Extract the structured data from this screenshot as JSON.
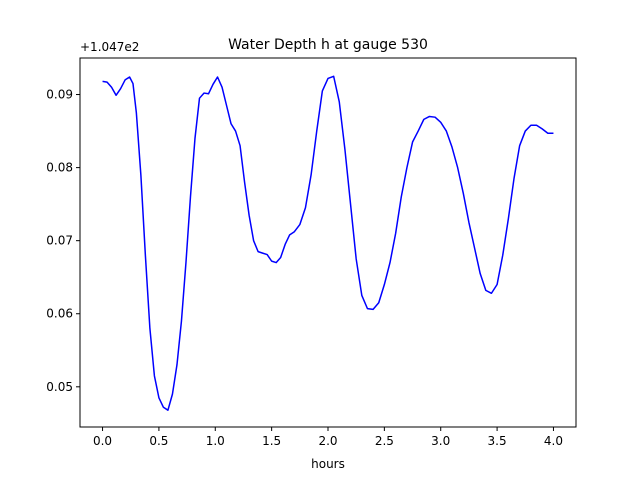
{
  "chart_data": {
    "type": "line",
    "title": "Water Depth h at gauge 530",
    "xlabel": "hours",
    "ylabel": "",
    "y_offset_label": "+1.047e2",
    "xlim": [
      -0.2,
      4.2
    ],
    "ylim": [
      0.0445,
      0.095
    ],
    "x_ticks": [
      0.0,
      0.5,
      1.0,
      1.5,
      2.0,
      2.5,
      3.0,
      3.5,
      4.0
    ],
    "x_tick_labels": [
      "0.0",
      "0.5",
      "1.0",
      "1.5",
      "2.0",
      "2.5",
      "3.0",
      "3.5",
      "4.0"
    ],
    "y_ticks": [
      0.05,
      0.06,
      0.07,
      0.08,
      0.09
    ],
    "y_tick_labels": [
      "0.05",
      "0.06",
      "0.07",
      "0.08",
      "0.09"
    ],
    "grid": false,
    "series": [
      {
        "color": "#0000ff",
        "x": [
          0.0,
          0.04,
          0.08,
          0.12,
          0.16,
          0.2,
          0.24,
          0.27,
          0.3,
          0.34,
          0.38,
          0.42,
          0.46,
          0.5,
          0.54,
          0.58,
          0.62,
          0.66,
          0.7,
          0.74,
          0.78,
          0.82,
          0.86,
          0.9,
          0.94,
          0.98,
          1.02,
          1.06,
          1.1,
          1.14,
          1.18,
          1.22,
          1.26,
          1.3,
          1.34,
          1.38,
          1.42,
          1.46,
          1.5,
          1.54,
          1.58,
          1.62,
          1.66,
          1.7,
          1.75,
          1.8,
          1.85,
          1.9,
          1.95,
          2.0,
          2.05,
          2.1,
          2.15,
          2.2,
          2.25,
          2.3,
          2.35,
          2.4,
          2.45,
          2.5,
          2.55,
          2.6,
          2.65,
          2.7,
          2.75,
          2.8,
          2.85,
          2.9,
          2.95,
          3.0,
          3.05,
          3.1,
          3.15,
          3.2,
          3.25,
          3.3,
          3.35,
          3.4,
          3.45,
          3.5,
          3.55,
          3.6,
          3.65,
          3.7,
          3.75,
          3.8,
          3.85,
          3.9,
          3.95,
          4.0
        ],
        "y": [
          0.0918,
          0.0917,
          0.091,
          0.0899,
          0.0908,
          0.092,
          0.0924,
          0.0915,
          0.0875,
          0.079,
          0.068,
          0.058,
          0.0515,
          0.0485,
          0.0472,
          0.0468,
          0.049,
          0.053,
          0.059,
          0.067,
          0.076,
          0.084,
          0.0895,
          0.0902,
          0.0901,
          0.0914,
          0.0924,
          0.091,
          0.0885,
          0.086,
          0.085,
          0.083,
          0.078,
          0.0735,
          0.07,
          0.0685,
          0.0683,
          0.0681,
          0.0672,
          0.067,
          0.0677,
          0.0695,
          0.0708,
          0.0712,
          0.0722,
          0.0745,
          0.079,
          0.085,
          0.0905,
          0.0922,
          0.0925,
          0.089,
          0.0825,
          0.075,
          0.0675,
          0.0625,
          0.0607,
          0.0606,
          0.0615,
          0.064,
          0.067,
          0.071,
          0.076,
          0.08,
          0.0835,
          0.085,
          0.0866,
          0.087,
          0.0869,
          0.0862,
          0.085,
          0.0828,
          0.08,
          0.0765,
          0.0725,
          0.069,
          0.0655,
          0.0632,
          0.0628,
          0.064,
          0.068,
          0.073,
          0.0785,
          0.083,
          0.085,
          0.0858,
          0.0858,
          0.0853,
          0.0847,
          0.0847
        ]
      }
    ]
  }
}
